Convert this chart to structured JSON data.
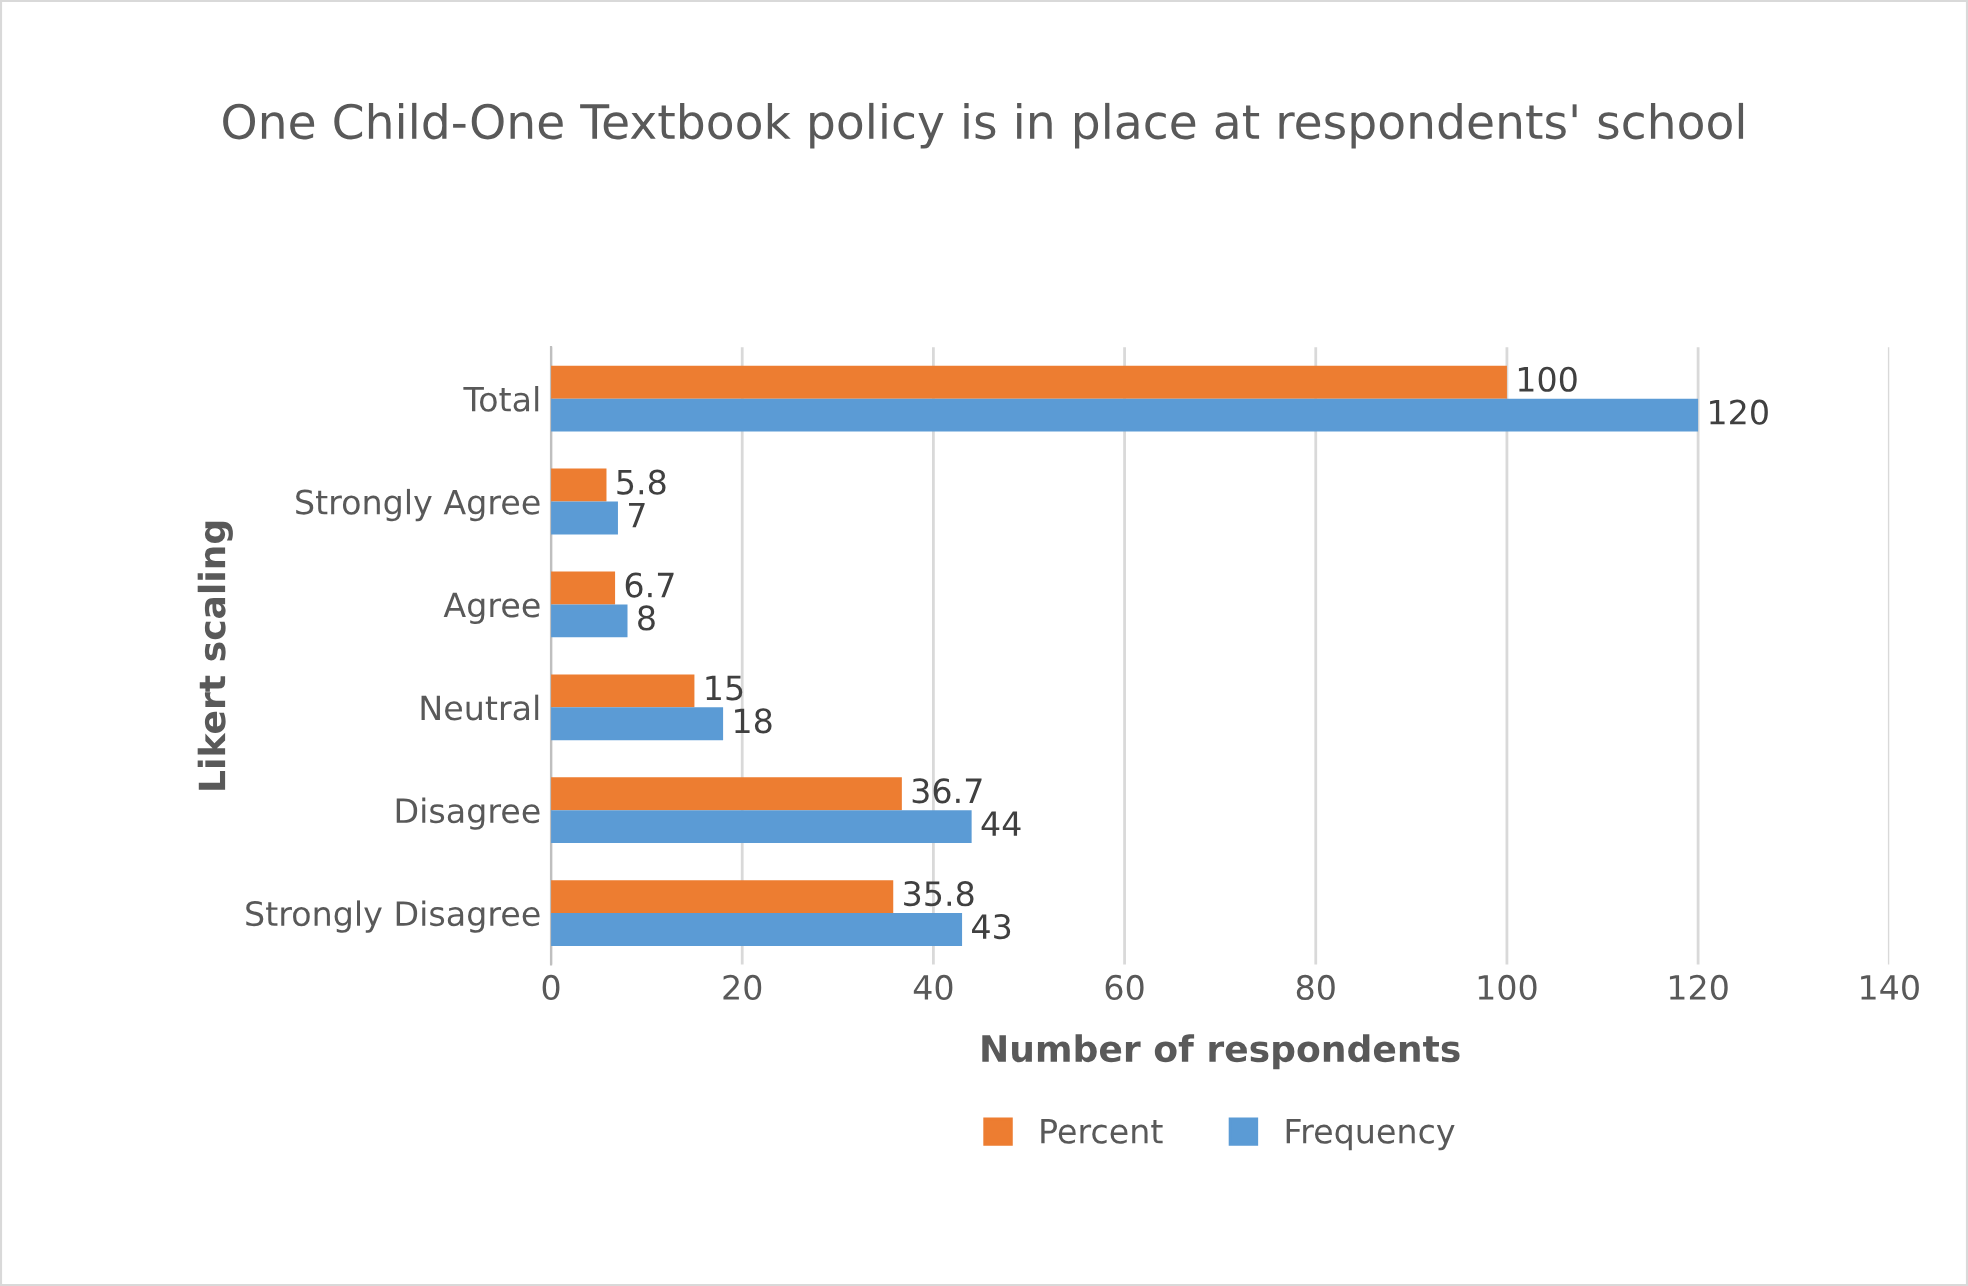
{
  "chart_data": {
    "type": "bar",
    "orientation": "horizontal",
    "title": "One Child-One Textbook policy is in place at respondents' school",
    "xlabel": "Number of respondents",
    "ylabel": "Likert scaling",
    "categories": [
      "Total",
      "Strongly Agree",
      "Agree",
      "Neutral",
      "Disagree",
      "Strongly Disagree"
    ],
    "series": [
      {
        "name": "Percent",
        "color": "#ed7d31",
        "values": [
          100,
          5.8,
          6.7,
          15,
          36.7,
          35.8
        ]
      },
      {
        "name": "Frequency",
        "color": "#5b9bd5",
        "values": [
          120,
          7,
          8,
          18,
          44,
          43
        ]
      }
    ],
    "xlim": [
      0,
      140
    ],
    "xticks": [
      0,
      20,
      40,
      60,
      80,
      100,
      120,
      140
    ],
    "grid": "x",
    "legend": "bottom",
    "data_labels": true
  }
}
